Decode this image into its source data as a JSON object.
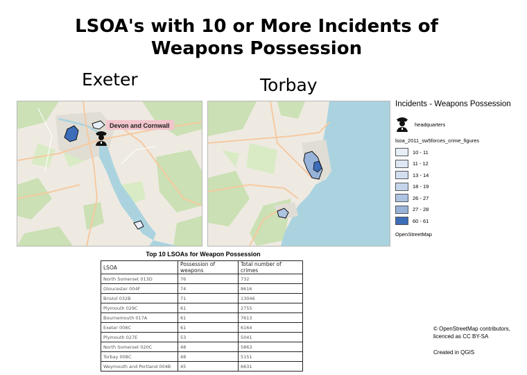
{
  "title_line1": "LSOA's with 10 or More Incidents of",
  "title_line2": "Weapons Possession",
  "map_exeter": {
    "label": "Exeter",
    "hq_label": "Devon and Cornwall"
  },
  "map_torbay": {
    "label": "Torbay"
  },
  "table": {
    "title": "Top 10 LSOAs for Weapon Possession",
    "headers": [
      "LSOA",
      "Possession of weapons",
      "Total number of crimes"
    ],
    "rows": [
      [
        "North Somerset 013D",
        "76",
        "732"
      ],
      [
        "Gloucester 004F",
        "74",
        "8616"
      ],
      [
        "Bristol 032B",
        "71",
        "13046"
      ],
      [
        "Plymouth 029C",
        "61",
        "2755"
      ],
      [
        "Bournemouth 017A",
        "61",
        "7613"
      ],
      [
        "Exeter 008C",
        "61",
        "6164"
      ],
      [
        "Plymouth 027E",
        "53",
        "5041"
      ],
      [
        "North Somerset 020C",
        "48",
        "5863"
      ],
      [
        "Torbay 008C",
        "48",
        "5151"
      ],
      [
        "Weymouth and Portland 004B",
        "45",
        "6631"
      ]
    ]
  },
  "legend": {
    "title": "Incidents - Weapons Possession",
    "hq_label": "headquarters",
    "hq_icon": "police-officer-icon",
    "layer_name": "lsoa_2011_sw5forces_crime_figures",
    "classes": [
      {
        "label": "10 - 11",
        "color": "#e8eef8"
      },
      {
        "label": "11 - 12",
        "color": "#dfe7f4"
      },
      {
        "label": "13 - 14",
        "color": "#d3def0"
      },
      {
        "label": "18 - 19",
        "color": "#c4d4eb"
      },
      {
        "label": "26 - 27",
        "color": "#acc3e2"
      },
      {
        "label": "27 - 28",
        "color": "#98b3d9"
      },
      {
        "label": "60 - 61",
        "color": "#3d6cb9"
      }
    ],
    "basemap": "OpenStreetMap"
  },
  "credits": {
    "line1": "© OpenStreetMap contributors,",
    "line2": "licenced as CC BY-SA",
    "line3": "Created in QGIS"
  },
  "colors": {
    "water": "#aad3df",
    "land": "#eeeae2",
    "green": "#c8e0b0",
    "urban": "#e0ddd5",
    "road": "#f6c9a0",
    "hq_label_bg": "#f2c4cc"
  }
}
